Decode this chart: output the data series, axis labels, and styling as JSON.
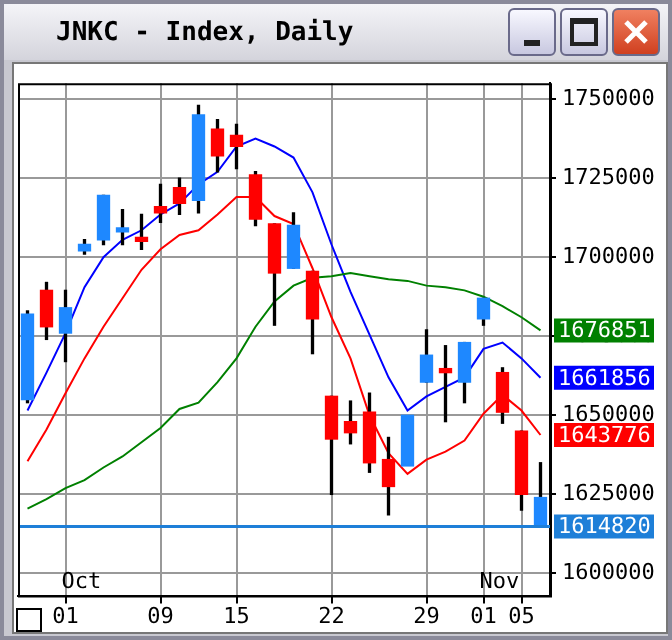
{
  "chart_data": {
    "type": "candlestick",
    "title": "JNKC - Index, Daily",
    "categories": [
      null,
      null,
      "01",
      null,
      null,
      null,
      null,
      "09",
      null,
      null,
      null,
      "15",
      null,
      null,
      null,
      null,
      "22",
      null,
      null,
      null,
      null,
      "29",
      null,
      null,
      "01",
      null,
      "05",
      null
    ],
    "ohlc": [
      [
        1682000,
        1683000,
        1654000,
        1655000
      ],
      [
        1678000,
        1692000,
        1674000,
        1689500
      ],
      [
        1684000,
        1689500,
        1667000,
        1676000
      ],
      [
        1704000,
        1705500,
        1701000,
        1702000
      ],
      [
        1719500,
        1719500,
        1704000,
        1705500
      ],
      [
        1708500,
        1715000,
        1704000,
        1708000
      ],
      [
        1705000,
        1713500,
        1702500,
        1705500
      ],
      [
        1714000,
        1723000,
        1711000,
        1716000
      ],
      [
        1717000,
        1725000,
        1713500,
        1722000
      ],
      [
        1745000,
        1748000,
        1714000,
        1718000
      ],
      [
        1732000,
        1743500,
        1727000,
        1740500
      ],
      [
        1735000,
        1742000,
        1728000,
        1738500
      ],
      [
        1712000,
        1727000,
        1710000,
        1726000
      ],
      [
        1695000,
        1710500,
        1678500,
        1710500
      ],
      [
        1710000,
        1714000,
        1696500,
        1696500
      ],
      [
        1680500,
        1695500,
        1669500,
        1695500
      ],
      [
        1642500,
        1656000,
        1625000,
        1656000
      ],
      [
        1644500,
        1654500,
        1641000,
        1648000
      ],
      [
        1635000,
        1657000,
        1632000,
        1651000
      ],
      [
        1627500,
        1643000,
        1618500,
        1636000
      ],
      [
        1650000,
        1650000,
        1634000,
        1634000
      ],
      [
        1669000,
        1677000,
        1660500,
        1660500
      ],
      [
        1663500,
        1672000,
        1648000,
        1664000
      ],
      [
        1673000,
        1673000,
        1654000,
        1660500
      ],
      [
        1687000,
        1687000,
        1678500,
        1680500
      ],
      [
        1651000,
        1665000,
        1647500,
        1663500
      ],
      [
        1625000,
        1645000,
        1620000,
        1645000
      ],
      [
        1624000,
        1635000,
        1614820,
        1614820
      ]
    ],
    "colors": [
      "#1e88ff",
      "#ff0000",
      "#1e88ff",
      "#1e88ff",
      "#1e88ff",
      "#1e88ff",
      "#ff0000",
      "#ff0000",
      "#ff0000",
      "#1e88ff",
      "#ff0000",
      "#ff0000",
      "#ff0000",
      "#ff0000",
      "#1e88ff",
      "#ff0000",
      "#ff0000",
      "#ff0000",
      "#ff0000",
      "#ff0000",
      "#1e88ff",
      "#1e88ff",
      "#ff0000",
      "#1e88ff",
      "#1e88ff",
      "#ff0000",
      "#ff0000",
      "#1e88ff"
    ],
    "series": [
      {
        "type": "line",
        "color": "#008000",
        "values": [
          1620500,
          1623500,
          1627000,
          1629500,
          1633500,
          1637000,
          1641500,
          1646000,
          1652000,
          1654000,
          1660500,
          1668000,
          1678000,
          1686000,
          1691000,
          1693500,
          1694000,
          1695000,
          1694000,
          1693000,
          1692500,
          1691000,
          1690500,
          1689500,
          1687500,
          1684500,
          1681000,
          1676851
        ],
        "value_labels": [
          null,
          null,
          null,
          null,
          null,
          null,
          null,
          null,
          null,
          null,
          null,
          null,
          null,
          null,
          null,
          null,
          null,
          null,
          null,
          null,
          null,
          null,
          null,
          null,
          null,
          null,
          null,
          "1676851"
        ]
      },
      {
        "type": "line",
        "color": "#0000ff",
        "values": [
          1651500,
          1663500,
          1676000,
          1690500,
          1700000,
          1705500,
          1708500,
          1713500,
          1717000,
          1723000,
          1727000,
          1735000,
          1737500,
          1735000,
          1731500,
          1720500,
          1704000,
          1689000,
          1675500,
          1662000,
          1651500,
          1656000,
          1659000,
          1662000,
          1671000,
          1673000,
          1668000,
          1661856
        ],
        "value_labels": [
          null,
          null,
          null,
          null,
          null,
          null,
          null,
          null,
          null,
          null,
          null,
          null,
          null,
          null,
          null,
          null,
          null,
          null,
          null,
          null,
          null,
          null,
          null,
          null,
          null,
          null,
          null,
          "1661856"
        ]
      },
      {
        "type": "line",
        "color": "#ff0000",
        "values": [
          1635500,
          1645500,
          1657000,
          1668000,
          1678000,
          1687000,
          1696000,
          1702500,
          1707000,
          1708500,
          1713500,
          1719000,
          1719000,
          1713000,
          1710500,
          1696500,
          1681000,
          1668000,
          1650000,
          1638000,
          1631500,
          1636000,
          1638500,
          1642000,
          1650500,
          1656500,
          1651500,
          1643776
        ],
        "value_labels": [
          null,
          null,
          null,
          null,
          null,
          null,
          null,
          null,
          null,
          null,
          null,
          null,
          null,
          null,
          null,
          null,
          null,
          null,
          null,
          null,
          null,
          null,
          null,
          null,
          null,
          null,
          null,
          "1643776"
        ]
      }
    ],
    "ref_lines": [
      {
        "axis": "y",
        "value": 1614820,
        "label": "1614820",
        "color": "#1e7fd8"
      }
    ],
    "annotations": [
      "Oct",
      "Nov"
    ],
    "ylim": [
      1593000,
      1755000
    ],
    "yticks": [
      1600000,
      1625000,
      1650000,
      1675000,
      1700000,
      1725000,
      1750000
    ],
    "grid": true,
    "legend": false
  }
}
